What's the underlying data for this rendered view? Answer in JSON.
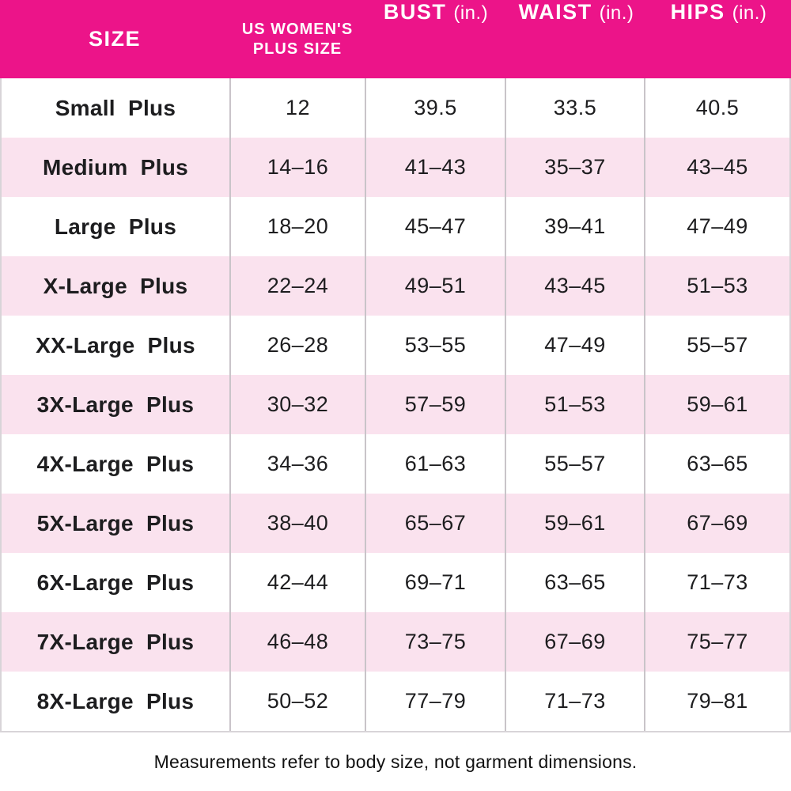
{
  "colors": {
    "header_bg": "#EC1489",
    "header_text": "#FFFFFF",
    "row_bg": "#FFFFFF",
    "row_alt_bg": "#FAE2EE",
    "divider": "#C9C4C9",
    "outer_border": "#D8D4D8",
    "text": "#1D1D1F"
  },
  "table": {
    "columns": [
      {
        "label": "SIZE",
        "unit": ""
      },
      {
        "label": "US WOMEN'S PLUS SIZE",
        "unit": "",
        "lines": [
          "US WOMEN'S",
          "PLUS SIZE"
        ]
      },
      {
        "label": "BUST",
        "unit": "(in.)"
      },
      {
        "label": "WAIST",
        "unit": "(in.)"
      },
      {
        "label": "HIPS",
        "unit": "(in.)"
      }
    ],
    "rows": [
      {
        "size": "Small Plus",
        "us_plus_size": "12",
        "bust": "39.5",
        "waist": "33.5",
        "hips": "40.5"
      },
      {
        "size": "Medium Plus",
        "us_plus_size": "14–16",
        "bust": "41–43",
        "waist": "35–37",
        "hips": "43–45"
      },
      {
        "size": "Large Plus",
        "us_plus_size": "18–20",
        "bust": "45–47",
        "waist": "39–41",
        "hips": "47–49"
      },
      {
        "size": "X-Large Plus",
        "us_plus_size": "22–24",
        "bust": "49–51",
        "waist": "43–45",
        "hips": "51–53"
      },
      {
        "size": "XX-Large Plus",
        "us_plus_size": "26–28",
        "bust": "53–55",
        "waist": "47–49",
        "hips": "55–57"
      },
      {
        "size": "3X-Large Plus",
        "us_plus_size": "30–32",
        "bust": "57–59",
        "waist": "51–53",
        "hips": "59–61"
      },
      {
        "size": "4X-Large Plus",
        "us_plus_size": "34–36",
        "bust": "61–63",
        "waist": "55–57",
        "hips": "63–65"
      },
      {
        "size": "5X-Large Plus",
        "us_plus_size": "38–40",
        "bust": "65–67",
        "waist": "59–61",
        "hips": "67–69"
      },
      {
        "size": "6X-Large Plus",
        "us_plus_size": "42–44",
        "bust": "69–71",
        "waist": "63–65",
        "hips": "71–73"
      },
      {
        "size": "7X-Large Plus",
        "us_plus_size": "46–48",
        "bust": "73–75",
        "waist": "67–69",
        "hips": "75–77"
      },
      {
        "size": "8X-Large Plus",
        "us_plus_size": "50–52",
        "bust": "77–79",
        "waist": "71–73",
        "hips": "79–81"
      }
    ]
  },
  "footnote": "Measurements refer to body size, not garment dimensions.",
  "chart_data": {
    "type": "table",
    "title": "Women's Plus Size Chart",
    "columns": [
      "SIZE",
      "US WOMEN'S PLUS SIZE",
      "BUST (in.)",
      "WAIST (in.)",
      "HIPS (in.)"
    ],
    "rows": [
      [
        "Small Plus",
        "12",
        "39.5",
        "33.5",
        "40.5"
      ],
      [
        "Medium Plus",
        "14–16",
        "41–43",
        "35–37",
        "43–45"
      ],
      [
        "Large Plus",
        "18–20",
        "45–47",
        "39–41",
        "47–49"
      ],
      [
        "X-Large Plus",
        "22–24",
        "49–51",
        "43–45",
        "51–53"
      ],
      [
        "XX-Large Plus",
        "26–28",
        "53–55",
        "47–49",
        "55–57"
      ],
      [
        "3X-Large Plus",
        "30–32",
        "57–59",
        "51–53",
        "59–61"
      ],
      [
        "4X-Large Plus",
        "34–36",
        "61–63",
        "55–57",
        "63–65"
      ],
      [
        "5X-Large Plus",
        "38–40",
        "65–67",
        "59–61",
        "67–69"
      ],
      [
        "6X-Large Plus",
        "42–44",
        "69–71",
        "63–65",
        "71–73"
      ],
      [
        "7X-Large Plus",
        "46–48",
        "73–75",
        "67–69",
        "75–77"
      ],
      [
        "8X-Large Plus",
        "50–52",
        "77–79",
        "71–73",
        "79–81"
      ]
    ],
    "footnote": "Measurements refer to body size, not garment dimensions.",
    "layout": {
      "header_fill": "#EC1489",
      "alternating_row_fill": "#FAE2EE",
      "grid": "vertical-dividers-only"
    }
  }
}
